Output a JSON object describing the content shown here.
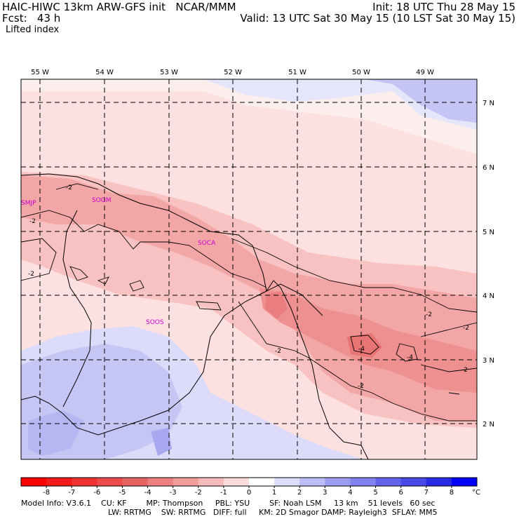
{
  "header": {
    "title": "HAIC-HIWC 13km ARW-GFS init   NCAR/MMM",
    "fcst": "Fcst:   43 h",
    "field": "Lifted index",
    "init": "Init: 18 UTC Thu 28 May 15",
    "valid": "Valid: 13 UTC Sat 30 May 15 (10 LST Sat 30 May 15)"
  },
  "map": {
    "lon_labels": [
      "55 W",
      "54 W",
      "53 W",
      "52 W",
      "51 W",
      "50 W",
      "49 W"
    ],
    "lat_labels": [
      "7 N",
      "6 N",
      "5 N",
      "4 N",
      "3 N",
      "2 N"
    ],
    "stations": [
      "SMJP",
      "SOGM",
      "SOCA",
      "SOOS"
    ],
    "contour_labels": [
      "-2",
      "-2",
      "-2",
      "-2",
      "-2",
      "-2",
      "-2",
      "-2",
      "-4",
      "-4"
    ]
  },
  "colorbar": {
    "labels": [
      "-8",
      "-7",
      "-6",
      "-5",
      "-4",
      "-3",
      "-2",
      "-1",
      "0",
      "1",
      "2",
      "3",
      "4",
      "5",
      "6",
      "7",
      "8"
    ],
    "unit": "°C",
    "colors": [
      "#ff0000",
      "#f51a1a",
      "#f03232",
      "#eb4b4b",
      "#e86464",
      "#ec8080",
      "#f29c9c",
      "#f7baba",
      "#fbdcdc",
      "#ffffff",
      "#dcdcfc",
      "#bcbcf7",
      "#9c9cf3",
      "#8080ef",
      "#6464ea",
      "#4848e7",
      "#2a2ae6",
      "#0000ff"
    ]
  },
  "footer": {
    "line1": "Model Info: V3.6.1    CU: KF        MP: Thompson     PBL: YSU        SF: Noah LSM     13 km    51 levels   60 sec",
    "line2": "LW: RRTMG    SW: RRTMG   DIFF: full     KM: 2D Smagor DAMP: Rayleigh3  SFLAY: MM5"
  }
}
